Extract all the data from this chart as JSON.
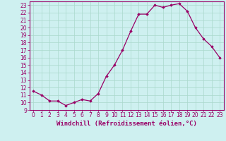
{
  "x": [
    0,
    1,
    2,
    3,
    4,
    5,
    6,
    7,
    8,
    9,
    10,
    11,
    12,
    13,
    14,
    15,
    16,
    17,
    18,
    19,
    20,
    21,
    22,
    23
  ],
  "y": [
    11.5,
    11.0,
    10.2,
    10.2,
    9.6,
    10.0,
    10.4,
    10.2,
    11.2,
    13.5,
    15.0,
    17.0,
    19.5,
    21.8,
    21.8,
    23.0,
    22.7,
    23.0,
    23.2,
    22.2,
    20.0,
    18.5,
    17.5,
    16.0
  ],
  "line_color": "#990066",
  "marker": "D",
  "markersize": 1.8,
  "linewidth": 0.9,
  "xlabel": "Windchill (Refroidissement éolien,°C)",
  "xlabel_fontsize": 6.5,
  "background_color": "#cef0f0",
  "grid_color": "#aad8cc",
  "yticks": [
    9,
    10,
    11,
    12,
    13,
    14,
    15,
    16,
    17,
    18,
    19,
    20,
    21,
    22,
    23
  ],
  "xticks": [
    0,
    1,
    2,
    3,
    4,
    5,
    6,
    7,
    8,
    9,
    10,
    11,
    12,
    13,
    14,
    15,
    16,
    17,
    18,
    19,
    20,
    21,
    22,
    23
  ],
  "ylim": [
    9,
    23.5
  ],
  "xlim": [
    -0.5,
    23.5
  ],
  "tick_fontsize": 5.5
}
